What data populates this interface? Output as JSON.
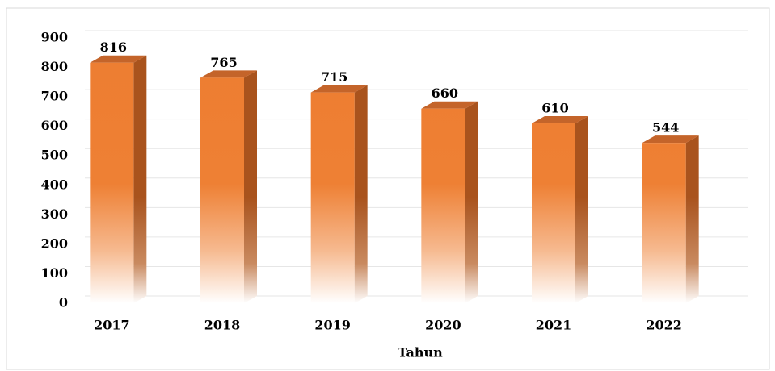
{
  "chart_data": {
    "type": "bar3d",
    "categories": [
      "2017",
      "2018",
      "2019",
      "2020",
      "2021",
      "2022"
    ],
    "values": [
      816,
      765,
      715,
      660,
      610,
      544
    ],
    "color": "#ed7d31",
    "x_label": "Tahun",
    "ylim": [
      0,
      900
    ],
    "yticks": [
      0,
      100,
      200,
      300,
      400,
      500,
      600,
      700,
      800,
      900
    ],
    "grid": true
  }
}
